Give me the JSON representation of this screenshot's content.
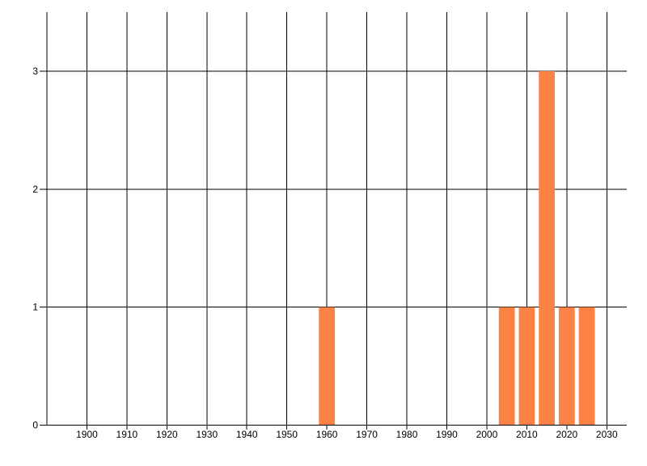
{
  "chart_data": {
    "type": "bar",
    "x_ticks": [
      1900,
      1910,
      1920,
      1930,
      1940,
      1950,
      1960,
      1970,
      1980,
      1990,
      2000,
      2010,
      2020,
      2030
    ],
    "x_tick_labels": [
      "1900",
      "1910",
      "1920",
      "1930",
      "1940",
      "1950",
      "1960",
      "1970",
      "1980",
      "1990",
      "2000",
      "2010",
      "2020",
      "2030"
    ],
    "y_ticks": [
      0,
      1,
      2,
      3
    ],
    "y_tick_labels": [
      "0",
      "1",
      "2",
      "3"
    ],
    "xlim": [
      1890,
      2035
    ],
    "ylim": [
      0,
      3.5
    ],
    "bars": [
      {
        "year": 1960,
        "value": 1
      },
      {
        "year": 2005,
        "value": 1
      },
      {
        "year": 2010,
        "value": 1
      },
      {
        "year": 2015,
        "value": 3
      },
      {
        "year": 2020,
        "value": 1
      },
      {
        "year": 2025,
        "value": 1
      }
    ],
    "bar_width_years": 4,
    "grid": true,
    "legend": "none",
    "colors": {
      "bar": "#FC8144",
      "grid": "#000000",
      "axis": "#000000",
      "text": "#000000",
      "background": "#FFFFFF"
    }
  }
}
